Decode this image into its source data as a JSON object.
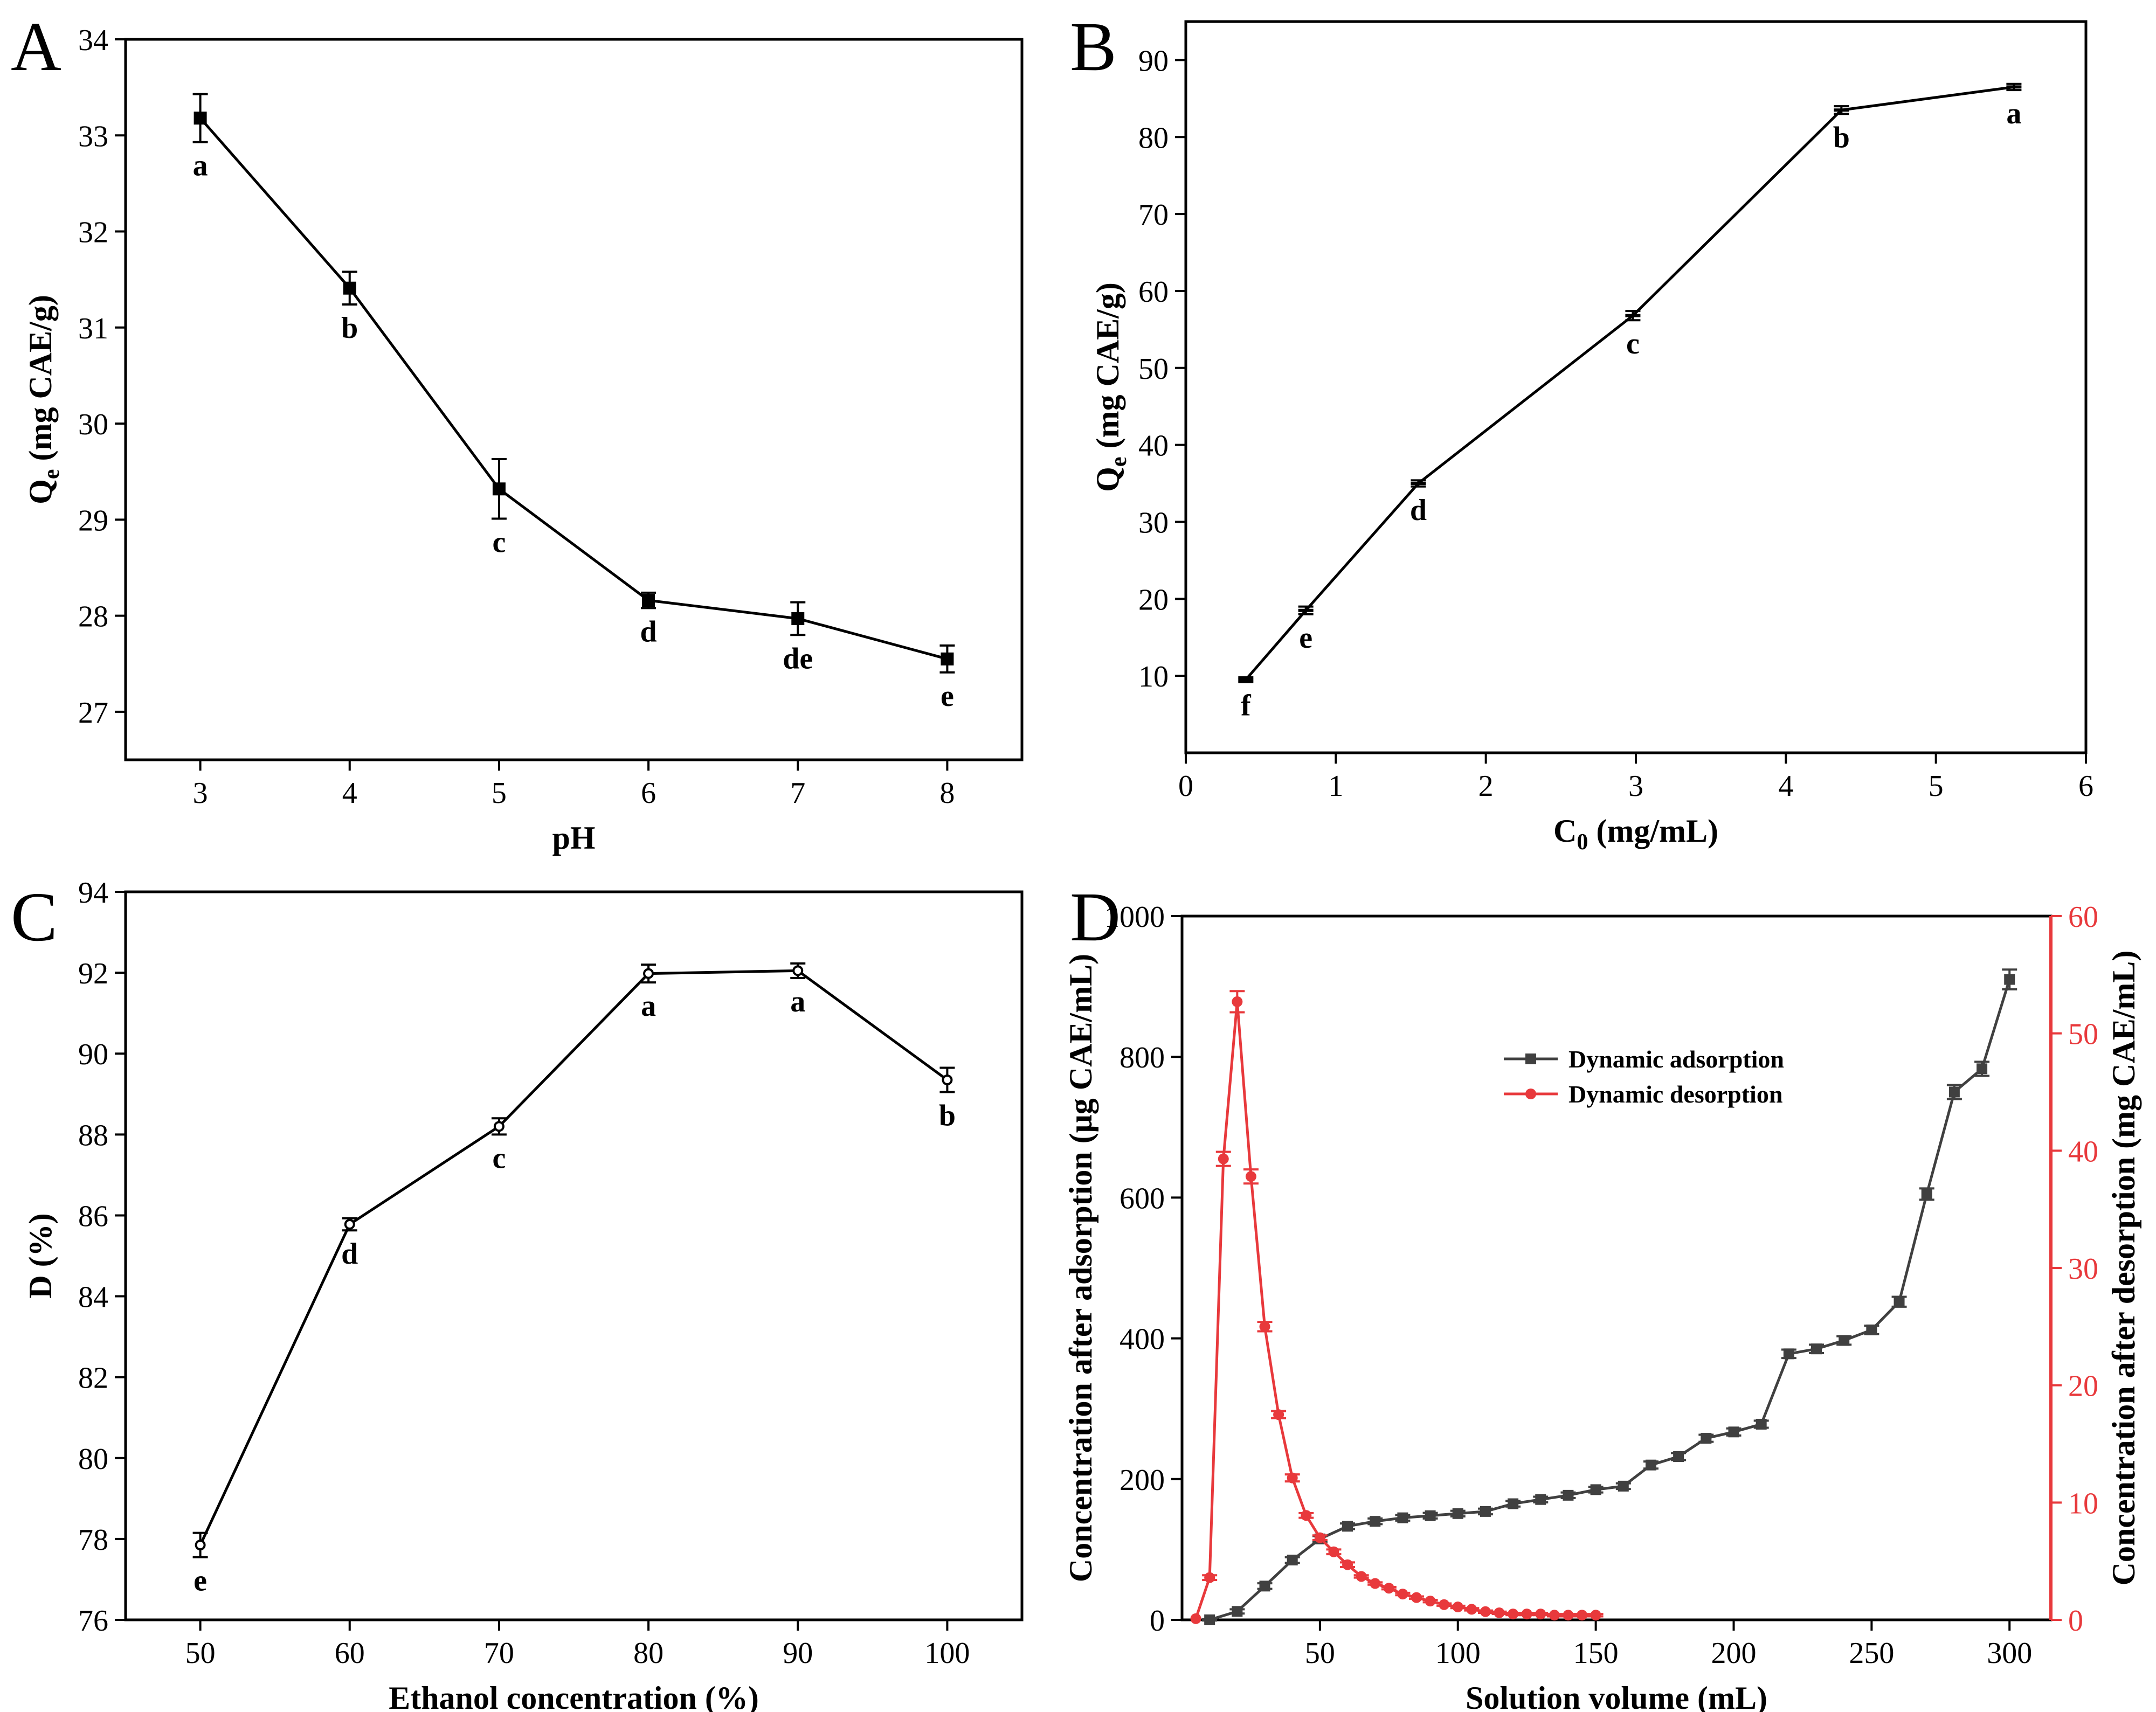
{
  "chart_data": [
    {
      "panel": "A",
      "type": "line",
      "xlabel": "pH",
      "ylabel_main": "Q",
      "ylabel_sub": "e",
      "ylabel_rest": " (mg CAE/g)",
      "x": [
        3,
        4,
        5,
        6,
        7,
        8
      ],
      "y": [
        33.18,
        31.41,
        29.32,
        28.16,
        27.97,
        27.55
      ],
      "err": [
        0.25,
        0.17,
        0.31,
        0.08,
        0.17,
        0.14
      ],
      "letters": [
        "a",
        "b",
        "c",
        "d",
        "de",
        "e"
      ],
      "xlim": [
        2.5,
        8.5
      ],
      "ylim": [
        26.5,
        34
      ],
      "xticks": [
        3,
        4,
        5,
        6,
        7,
        8
      ],
      "yticks": [
        27,
        28,
        29,
        30,
        31,
        32,
        33,
        34
      ],
      "marker": "square-filled",
      "color": "#000000"
    },
    {
      "panel": "B",
      "type": "line",
      "xlabel_main": "C",
      "xlabel_sub": "0",
      "xlabel_rest": " (mg/mL)",
      "ylabel_main": "Q",
      "ylabel_sub": "e",
      "ylabel_rest": " (mg CAE/g)",
      "x": [
        0.4,
        0.8,
        1.55,
        2.98,
        4.37,
        5.52
      ],
      "y": [
        9.5,
        18.5,
        35.0,
        56.8,
        83.5,
        86.5
      ],
      "err": [
        0.3,
        0.5,
        0.4,
        0.6,
        0.5,
        0.4
      ],
      "letters": [
        "f",
        "e",
        "d",
        "c",
        "b",
        "a"
      ],
      "xlim": [
        0,
        6
      ],
      "ylim": [
        0,
        95
      ],
      "xticks": [
        0,
        1,
        2,
        3,
        4,
        5,
        6
      ],
      "yticks": [
        10,
        20,
        30,
        40,
        50,
        60,
        70,
        80,
        90
      ],
      "marker": "dash",
      "color": "#000000"
    },
    {
      "panel": "C",
      "type": "line",
      "xlabel": "Ethanol concentration (%)",
      "ylabel": "D (%)",
      "x": [
        50,
        60,
        70,
        80,
        90,
        100
      ],
      "y": [
        77.85,
        85.78,
        88.2,
        91.98,
        92.05,
        89.35
      ],
      "err": [
        0.3,
        0.15,
        0.2,
        0.22,
        0.18,
        0.3
      ],
      "letters": [
        "e",
        "d",
        "c",
        "a",
        "a",
        "b"
      ],
      "xlim": [
        45,
        105
      ],
      "ylim": [
        76,
        94
      ],
      "xticks": [
        50,
        60,
        70,
        80,
        90,
        100
      ],
      "yticks": [
        76,
        78,
        80,
        82,
        84,
        86,
        88,
        90,
        92,
        94
      ],
      "marker": "circle-open",
      "color": "#000000"
    },
    {
      "panel": "D",
      "type": "line",
      "xlabel": "Solution volume (mL)",
      "ylabel": "Concentration after adsorption (μg CAE/mL)",
      "ylabel_right": "Concentration after desorption (mg CAE/mL)",
      "xlim": [
        0,
        315
      ],
      "ylim": [
        0,
        1000
      ],
      "ylim_right": [
        0,
        60
      ],
      "xticks": [
        50,
        100,
        150,
        200,
        250,
        300
      ],
      "yticks": [
        0,
        200,
        400,
        600,
        800,
        1000
      ],
      "yticks_right": [
        0,
        10,
        20,
        30,
        40,
        50,
        60
      ],
      "series": [
        {
          "name": "Dynamic adsorption",
          "axis": "left",
          "color": "#404040",
          "marker": "square",
          "x": [
            10,
            20,
            30,
            40,
            50,
            60,
            70,
            80,
            90,
            100,
            110,
            120,
            130,
            140,
            150,
            160,
            170,
            180,
            190,
            200,
            210,
            220,
            230,
            240,
            250,
            260,
            270,
            280,
            290,
            300
          ],
          "y": [
            0,
            12,
            48,
            85,
            115,
            133,
            140,
            145,
            148,
            151,
            154,
            165,
            171,
            177,
            185,
            190,
            220,
            232,
            258,
            267,
            278,
            378,
            385,
            397,
            412,
            452,
            605,
            750,
            783,
            910
          ],
          "err": [
            1,
            3,
            4,
            4,
            4,
            4,
            4,
            4,
            4,
            4,
            4,
            4,
            4,
            4,
            4,
            4,
            5,
            5,
            5,
            5,
            5,
            6,
            6,
            6,
            6,
            7,
            8,
            10,
            10,
            14
          ]
        },
        {
          "name": "Dynamic desorption",
          "axis": "right",
          "color": "#E8393C",
          "marker": "circle",
          "x": [
            5,
            10,
            15,
            20,
            25,
            30,
            35,
            40,
            45,
            50,
            55,
            60,
            65,
            70,
            75,
            80,
            85,
            90,
            95,
            100,
            105,
            110,
            115,
            120,
            125,
            130,
            135,
            140,
            145,
            150
          ],
          "y": [
            0.1,
            3.6,
            39.3,
            52.7,
            37.8,
            25.0,
            17.5,
            12.1,
            8.9,
            7.0,
            5.8,
            4.7,
            3.7,
            3.1,
            2.7,
            2.2,
            1.9,
            1.6,
            1.3,
            1.1,
            0.9,
            0.7,
            0.6,
            0.5,
            0.5,
            0.5,
            0.4,
            0.4,
            0.4,
            0.4
          ],
          "err": [
            0,
            0.2,
            0.6,
            0.9,
            0.6,
            0.4,
            0.3,
            0.3,
            0.2,
            0.2,
            0.2,
            0.2,
            0.1,
            0.1,
            0.1,
            0.1,
            0.1,
            0.1,
            0.1,
            0.1,
            0.1,
            0.1,
            0.1,
            0.1,
            0.1,
            0.1,
            0.1,
            0.1,
            0.1,
            0.1
          ]
        }
      ]
    }
  ]
}
